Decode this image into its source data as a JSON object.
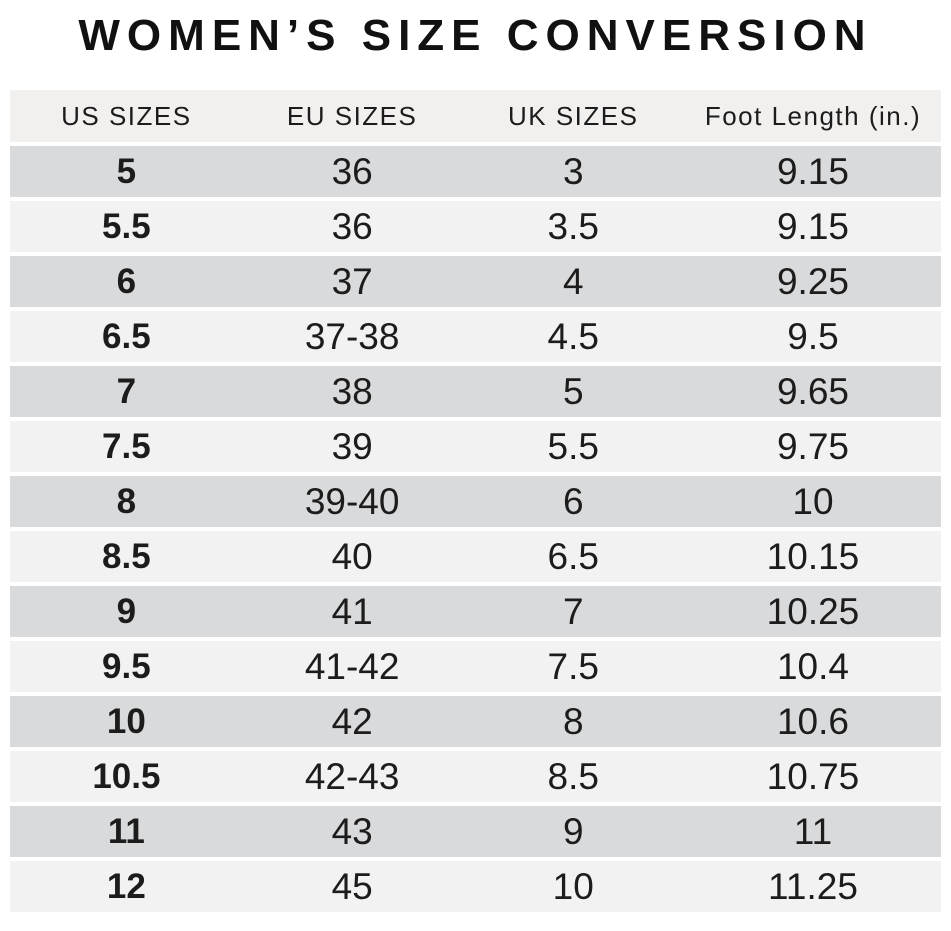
{
  "title": "WOMEN’S SIZE CONVERSION",
  "table": {
    "columns": [
      "US SIZES",
      "EU SIZES",
      "UK SIZES",
      "Foot Length (in.)"
    ],
    "column_keys": [
      "us-size",
      "eu-size",
      "uk-size",
      "foot-length"
    ],
    "rows": [
      [
        "5",
        "36",
        "3",
        "9.15"
      ],
      [
        "5.5",
        "36",
        "3.5",
        "9.15"
      ],
      [
        "6",
        "37",
        "4",
        "9.25"
      ],
      [
        "6.5",
        "37-38",
        "4.5",
        "9.5"
      ],
      [
        "7",
        "38",
        "5",
        "9.65"
      ],
      [
        "7.5",
        "39",
        "5.5",
        "9.75"
      ],
      [
        "8",
        "39-40",
        "6",
        "10"
      ],
      [
        "8.5",
        "40",
        "6.5",
        "10.15"
      ],
      [
        "9",
        "41",
        "7",
        "10.25"
      ],
      [
        "9.5",
        "41-42",
        "7.5",
        "10.4"
      ],
      [
        "10",
        "42",
        "8",
        "10.6"
      ],
      [
        "10.5",
        "42-43",
        "8.5",
        "10.75"
      ],
      [
        "11",
        "43",
        "9",
        "11"
      ],
      [
        "12",
        "45",
        "10",
        "11.25"
      ]
    ]
  },
  "colors": {
    "background": "#ffffff",
    "header_bg": "#f2f0ef",
    "row_dark": "#d9dadb",
    "row_light": "#f2f2f2",
    "text": "#1c1c1c",
    "title": "#111111"
  }
}
